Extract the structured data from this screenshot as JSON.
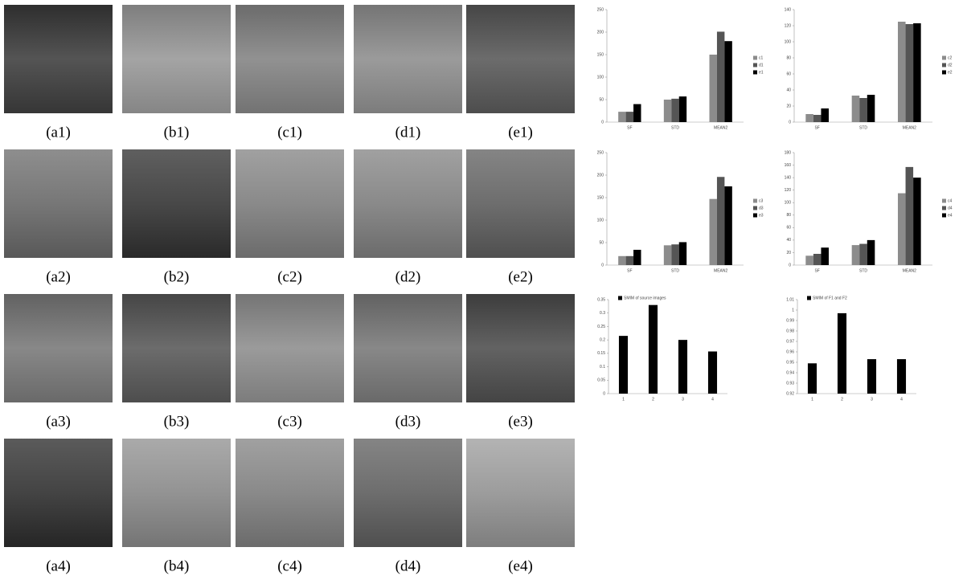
{
  "figure": {
    "captions": [
      [
        "(a1)",
        "(b1)",
        "(c1)",
        "(d1)",
        "(e1)"
      ],
      [
        "(a2)",
        "(b2)",
        "(c2)",
        "(d2)",
        "(e2)"
      ],
      [
        "(a3)",
        "(b3)",
        "(c3)",
        "(d3)",
        "(e3)"
      ],
      [
        "(a4)",
        "(b4)",
        "(c4)",
        "(d4)",
        "(e4)"
      ]
    ]
  },
  "chart_data": [
    {
      "type": "bar",
      "categories": [
        "SF",
        "STD",
        "MEAN2"
      ],
      "legend": "right",
      "series": [
        {
          "name": "c1",
          "color": "#8c8c8c",
          "values": [
            23,
            50,
            150
          ]
        },
        {
          "name": "d1",
          "color": "#555555",
          "values": [
            23,
            52,
            201
          ]
        },
        {
          "name": "e1",
          "color": "#000000",
          "values": [
            40,
            57,
            180
          ]
        }
      ],
      "ylim": [
        0,
        250
      ],
      "yticks": [
        0,
        50,
        100,
        150,
        200,
        250
      ]
    },
    {
      "type": "bar",
      "categories": [
        "SF",
        "STD",
        "MEAN2"
      ],
      "legend": "right",
      "series": [
        {
          "name": "c2",
          "color": "#8c8c8c",
          "values": [
            10,
            33,
            125
          ]
        },
        {
          "name": "d2",
          "color": "#555555",
          "values": [
            9,
            30,
            122
          ]
        },
        {
          "name": "e2",
          "color": "#000000",
          "values": [
            17,
            34,
            123
          ]
        }
      ],
      "ylim": [
        0,
        140
      ],
      "yticks": [
        0,
        20,
        40,
        60,
        80,
        100,
        120,
        140
      ]
    },
    {
      "type": "bar",
      "categories": [
        "SF",
        "STD",
        "MEAN2"
      ],
      "legend": "right",
      "series": [
        {
          "name": "c3",
          "color": "#8c8c8c",
          "values": [
            20,
            44,
            147
          ]
        },
        {
          "name": "d3",
          "color": "#555555",
          "values": [
            20,
            46,
            196
          ]
        },
        {
          "name": "e3",
          "color": "#000000",
          "values": [
            34,
            51,
            175
          ]
        }
      ],
      "ylim": [
        0,
        250
      ],
      "yticks": [
        0,
        50,
        100,
        150,
        200,
        250
      ]
    },
    {
      "type": "bar",
      "categories": [
        "SF",
        "STD",
        "MEAN2"
      ],
      "legend": "right",
      "series": [
        {
          "name": "c4",
          "color": "#8c8c8c",
          "values": [
            15,
            32,
            115
          ]
        },
        {
          "name": "d4",
          "color": "#555555",
          "values": [
            18,
            34,
            157
          ]
        },
        {
          "name": "e4",
          "color": "#000000",
          "values": [
            28,
            40,
            140
          ]
        }
      ],
      "ylim": [
        0,
        180
      ],
      "yticks": [
        0,
        20,
        40,
        60,
        80,
        100,
        120,
        140,
        160,
        180
      ]
    },
    {
      "type": "bar",
      "categories": [
        "1",
        "2",
        "3",
        "4"
      ],
      "legend": "top-left",
      "series": [
        {
          "name": "SMIM of source images",
          "color": "#000000",
          "values": [
            0.215,
            0.33,
            0.2,
            0.157
          ]
        }
      ],
      "ylim": [
        0,
        0.35
      ],
      "yticks": [
        0,
        0.05,
        0.1,
        0.15,
        0.2,
        0.25,
        0.3,
        0.35
      ]
    },
    {
      "type": "bar",
      "categories": [
        "1",
        "2",
        "3",
        "4"
      ],
      "legend": "top-left",
      "series": [
        {
          "name": "SMIM of F1 and F2",
          "color": "#000000",
          "values": [
            0.949,
            0.997,
            0.953,
            0.953
          ]
        }
      ],
      "ylim": [
        0.92,
        1.01
      ],
      "yticks": [
        0.92,
        0.93,
        0.94,
        0.95,
        0.96,
        0.97,
        0.98,
        0.99,
        1,
        1.01
      ]
    }
  ]
}
